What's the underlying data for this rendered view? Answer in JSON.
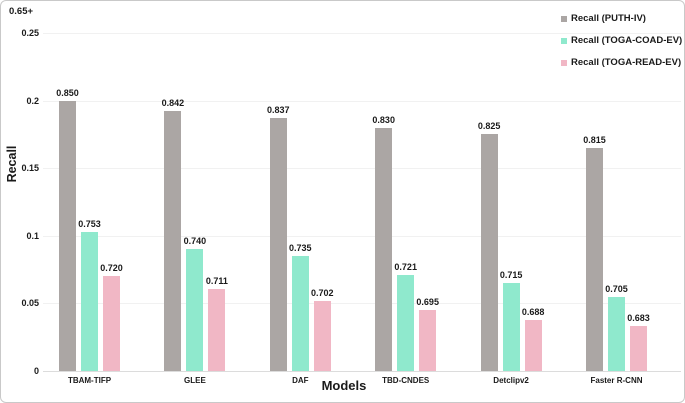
{
  "figure": {
    "axis_note": "0.65+",
    "ylabel": "Recall",
    "xlabel": "Models"
  },
  "chart_data": {
    "type": "bar",
    "title": "",
    "xlabel": "Models",
    "ylabel": "Recall",
    "y_axis_offset_note": "0.65+",
    "categories": [
      "TBAM-TIFP",
      "GLEE",
      "DAF",
      "TBD-CNDES",
      "Detclipv2",
      "Faster R-CNN"
    ],
    "series": [
      {
        "name": "Recall (PUTH-IV)",
        "color": "#aba6a4",
        "values": [
          0.85,
          0.842,
          0.837,
          0.83,
          0.825,
          0.815
        ]
      },
      {
        "name": "Recall (TOGA-COAD-EV)",
        "color": "#8fe9cd",
        "values": [
          0.753,
          0.74,
          0.735,
          0.721,
          0.715,
          0.705
        ]
      },
      {
        "name": "Recall (TOGA-READ-EV)",
        "color": "#f1b7c5",
        "values": [
          0.72,
          0.711,
          0.702,
          0.695,
          0.688,
          0.683
        ]
      }
    ],
    "value_base": 0.65,
    "y_ticks": [
      0,
      0.05,
      0.1,
      0.15,
      0.2,
      0.25
    ],
    "y_tick_labels": [
      "0",
      "0.05",
      "0.1",
      "0.15",
      "0.2",
      "0.25"
    ],
    "ylim": [
      0,
      0.265
    ],
    "grid": true,
    "legend_position": "top-right"
  }
}
